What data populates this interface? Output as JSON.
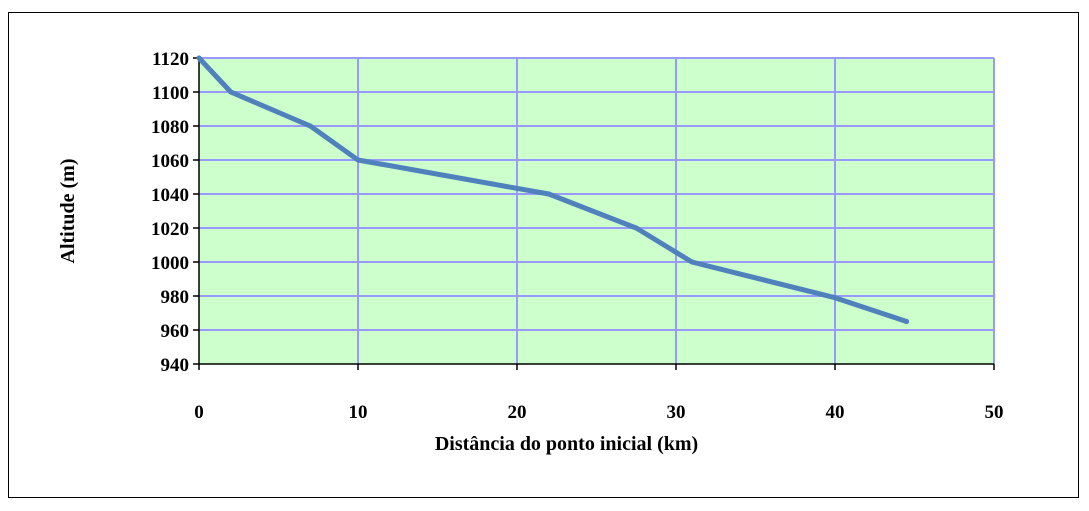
{
  "chart_data": {
    "type": "line",
    "title": "",
    "xlabel": "Distância do ponto inicial (km)",
    "ylabel": "Altitude (m)",
    "xlim": [
      0,
      50
    ],
    "ylim": [
      940,
      1120
    ],
    "xticks": [
      0,
      10,
      20,
      30,
      40,
      50
    ],
    "yticks": [
      940,
      960,
      980,
      1000,
      1020,
      1040,
      1060,
      1080,
      1100,
      1120
    ],
    "grid": true,
    "legend": "none",
    "colors": {
      "plot_background": "#ccffcc",
      "grid": "#9999ff",
      "line": "#4f81bd"
    },
    "series": [
      {
        "x": [
          0,
          2,
          7,
          10,
          22,
          27.5,
          31,
          40,
          44.5
        ],
        "y": [
          1120,
          1100,
          1080,
          1060,
          1040,
          1020,
          1000,
          979,
          965
        ]
      }
    ]
  }
}
